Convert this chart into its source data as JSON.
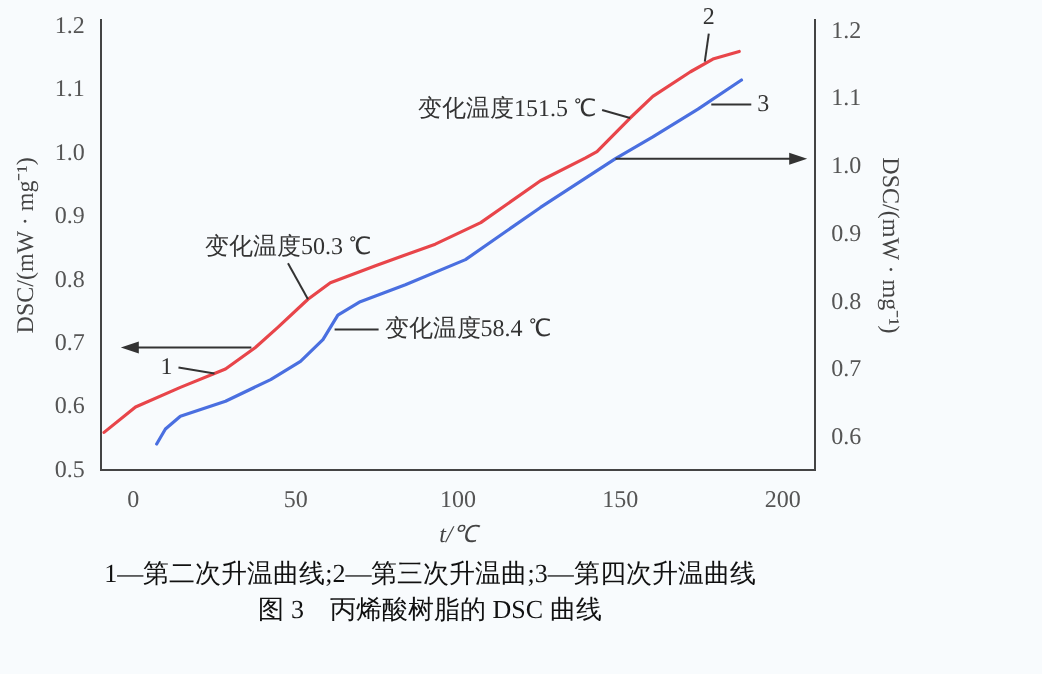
{
  "chart_data": {
    "type": "line",
    "title": "图 3　丙烯酸树脂的 DSC 曲线",
    "xlabel": "t/℃",
    "ylabel": "DSC/(mW · mg⁻¹)",
    "y2label": "DSC/(mW · mg⁻¹)",
    "xlim": [
      -10,
      210
    ],
    "xticks": [
      0,
      50,
      100,
      150,
      200
    ],
    "ylim": [
      0.5,
      1.21
    ],
    "yticks": [
      0.5,
      0.6,
      0.7,
      0.8,
      0.9,
      {
        "value": 1,
        "label": "1.0"
      },
      1.1,
      1.2
    ],
    "y2lim": [
      0.552,
      1.216
    ],
    "y2ticks": [
      0.6,
      0.7,
      0.8,
      0.9,
      {
        "value": 1,
        "label": "1.0"
      },
      1.1,
      1.2
    ],
    "grid": false,
    "legend": false,
    "marker": "none",
    "line_style": "solid",
    "series": [
      {
        "color": "#e8454a",
        "x": [
          -9,
          0.7,
          14.5,
          28.4,
          37.6,
          44.6,
          53.8,
          60.7,
          74.6,
          93,
          107,
          125.4,
          139.3,
          142.8,
          153,
          160,
          171.6,
          178.5,
          186.6
        ],
        "values": [
          0.56,
          0.6,
          0.631,
          0.66,
          0.694,
          0.726,
          0.77,
          0.796,
          0.823,
          0.857,
          0.891,
          0.957,
          0.993,
          1.003,
          1.056,
          1.09,
          1.129,
          1.149,
          1.161
        ]
      },
      {
        "color": "#4a6fe0",
        "axis": "y2",
        "x": [
          7.2,
          9.9,
          14.5,
          28.4,
          42.3,
          51.5,
          58.4,
          63,
          69.9,
          83.8,
          102.3,
          125.4,
          148.5,
          160,
          173.9,
          187.3
        ],
        "values": [
          0.591,
          0.613,
          0.632,
          0.654,
          0.686,
          0.713,
          0.745,
          0.781,
          0.801,
          0.826,
          0.863,
          0.94,
          1.012,
          1.044,
          1.085,
          1.128
        ]
      }
    ],
    "annotations": [
      {
        "text": "1",
        "x": 25,
        "y": 0.653
      },
      {
        "text": "2",
        "x": 176,
        "y": 1.145
      },
      {
        "text": "3",
        "x": 178,
        "y": 1.092
      },
      {
        "text": "变化温度50.3 ℃",
        "x": 53.8,
        "y": 0.77
      },
      {
        "text": "变化温度58.4 ℃",
        "x": 62,
        "y": 0.76
      },
      {
        "text": "变化温度151.5 ℃",
        "x": 153,
        "y": 1.056
      },
      "1—第二次升温曲线;2—第三次升温曲;3—第四次升温曲线"
    ]
  }
}
